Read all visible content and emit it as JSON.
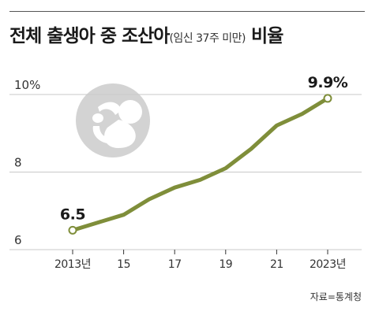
{
  "title": {
    "main": "전체 출생아 중 조산아",
    "paren": "(임신 37주 미만)",
    "suffix": "비율"
  },
  "source": "자료=통계청",
  "icon": "fetus-icon",
  "colors": {
    "line": "#7f8e3a",
    "grid": "#c9c9c9",
    "icon": "#d3d3d3",
    "axis": "#333333"
  },
  "chart_data": {
    "type": "line",
    "x": [
      2013,
      2014,
      2015,
      2016,
      2017,
      2018,
      2019,
      2020,
      2021,
      2022,
      2023
    ],
    "values": [
      6.5,
      6.7,
      6.9,
      7.3,
      7.6,
      7.8,
      8.1,
      8.6,
      9.2,
      9.5,
      9.9
    ],
    "x_ticks": [
      2013,
      2015,
      2017,
      2019,
      2021,
      2023
    ],
    "x_tick_labels": [
      "2013년",
      "15",
      "17",
      "19",
      "21",
      "2023년"
    ],
    "y_ticks": [
      6,
      8,
      10
    ],
    "y_tick_labels": [
      "6",
      "8",
      "10%"
    ],
    "ylim": [
      6,
      10
    ],
    "annotations": [
      {
        "x": 2013,
        "label": "6.5"
      },
      {
        "x": 2023,
        "label": "9.9%"
      }
    ],
    "grid": true
  }
}
